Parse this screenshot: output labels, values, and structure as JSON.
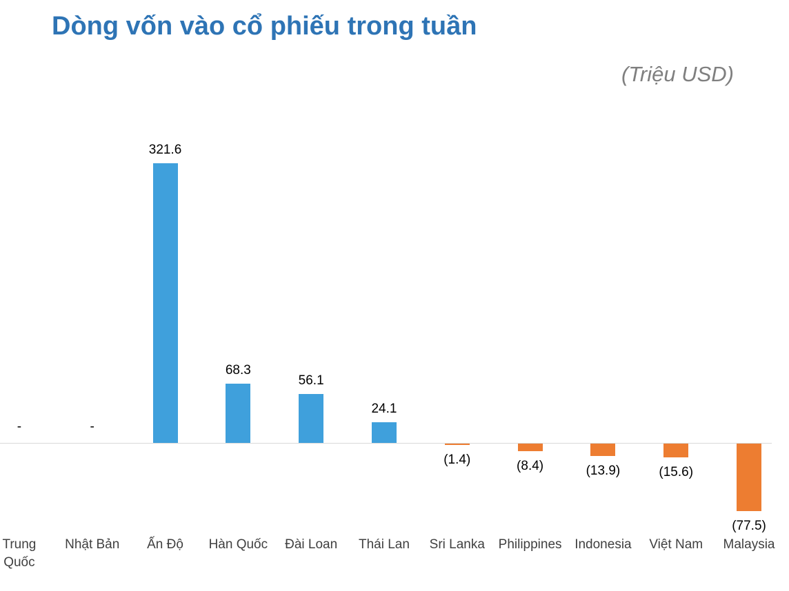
{
  "chart_data": {
    "type": "bar",
    "title": "Dòng vốn vào cổ phiếu trong tuần",
    "unit_label": "(Triệu USD)",
    "categories": [
      "Trung\nQuốc",
      "Nhật Bản",
      "Ấn Độ",
      "Hàn Quốc",
      "Đài Loan",
      "Thái Lan",
      "Sri Lanka",
      "Philippines",
      "Indonesia",
      "Việt Nam",
      "Malaysia"
    ],
    "values": [
      null,
      null,
      321.6,
      68.3,
      56.1,
      24.1,
      -1.4,
      -8.4,
      -13.9,
      -15.6,
      -77.5
    ],
    "value_labels": [
      "-",
      "-",
      "321.6",
      "68.3",
      "56.1",
      "24.1",
      "(1.4)",
      "(8.4)",
      "(13.9)",
      "(15.6)",
      "(77.5)"
    ],
    "ylim": [
      -100,
      350
    ],
    "grid": false,
    "legend": false,
    "xlabel": "",
    "ylabel": "",
    "colors": {
      "positive_bar": "#3FA0DC",
      "negative_bar": "#ED7D31",
      "title": "#2E74B5",
      "subtitle": "#7F7F7F",
      "category_label": "#404040",
      "axis_line": "#D9D9D9"
    }
  }
}
